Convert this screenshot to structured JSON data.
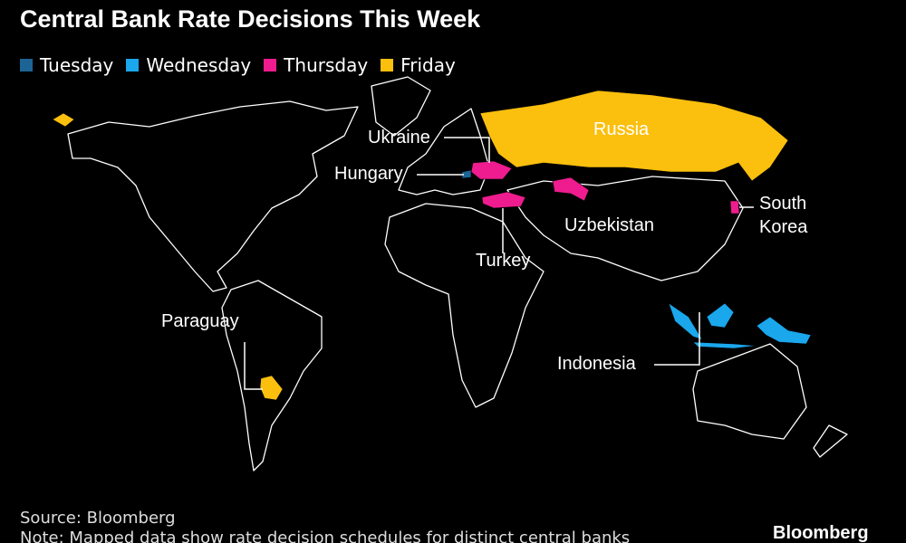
{
  "title": "Central Bank Rate Decisions This Week",
  "legend": [
    {
      "label": "Tuesday",
      "color": "#1d6496"
    },
    {
      "label": "Wednesday",
      "color": "#1aa7ec"
    },
    {
      "label": "Thursday",
      "color": "#ee1c8e"
    },
    {
      "label": "Friday",
      "color": "#fbbf0e"
    }
  ],
  "countries": [
    {
      "label": "Ukraine"
    },
    {
      "label": "Hungary"
    },
    {
      "label": "Russia"
    },
    {
      "label": "South Korea"
    },
    {
      "label": "Uzbekistan"
    },
    {
      "label": "Turkey"
    },
    {
      "label": "Paraguay"
    },
    {
      "label": "Indonesia"
    }
  ],
  "source": "Source: Bloomberg",
  "note": "Note: Mapped data show rate decision schedules for distinct central banks",
  "brand": "Bloomberg"
}
